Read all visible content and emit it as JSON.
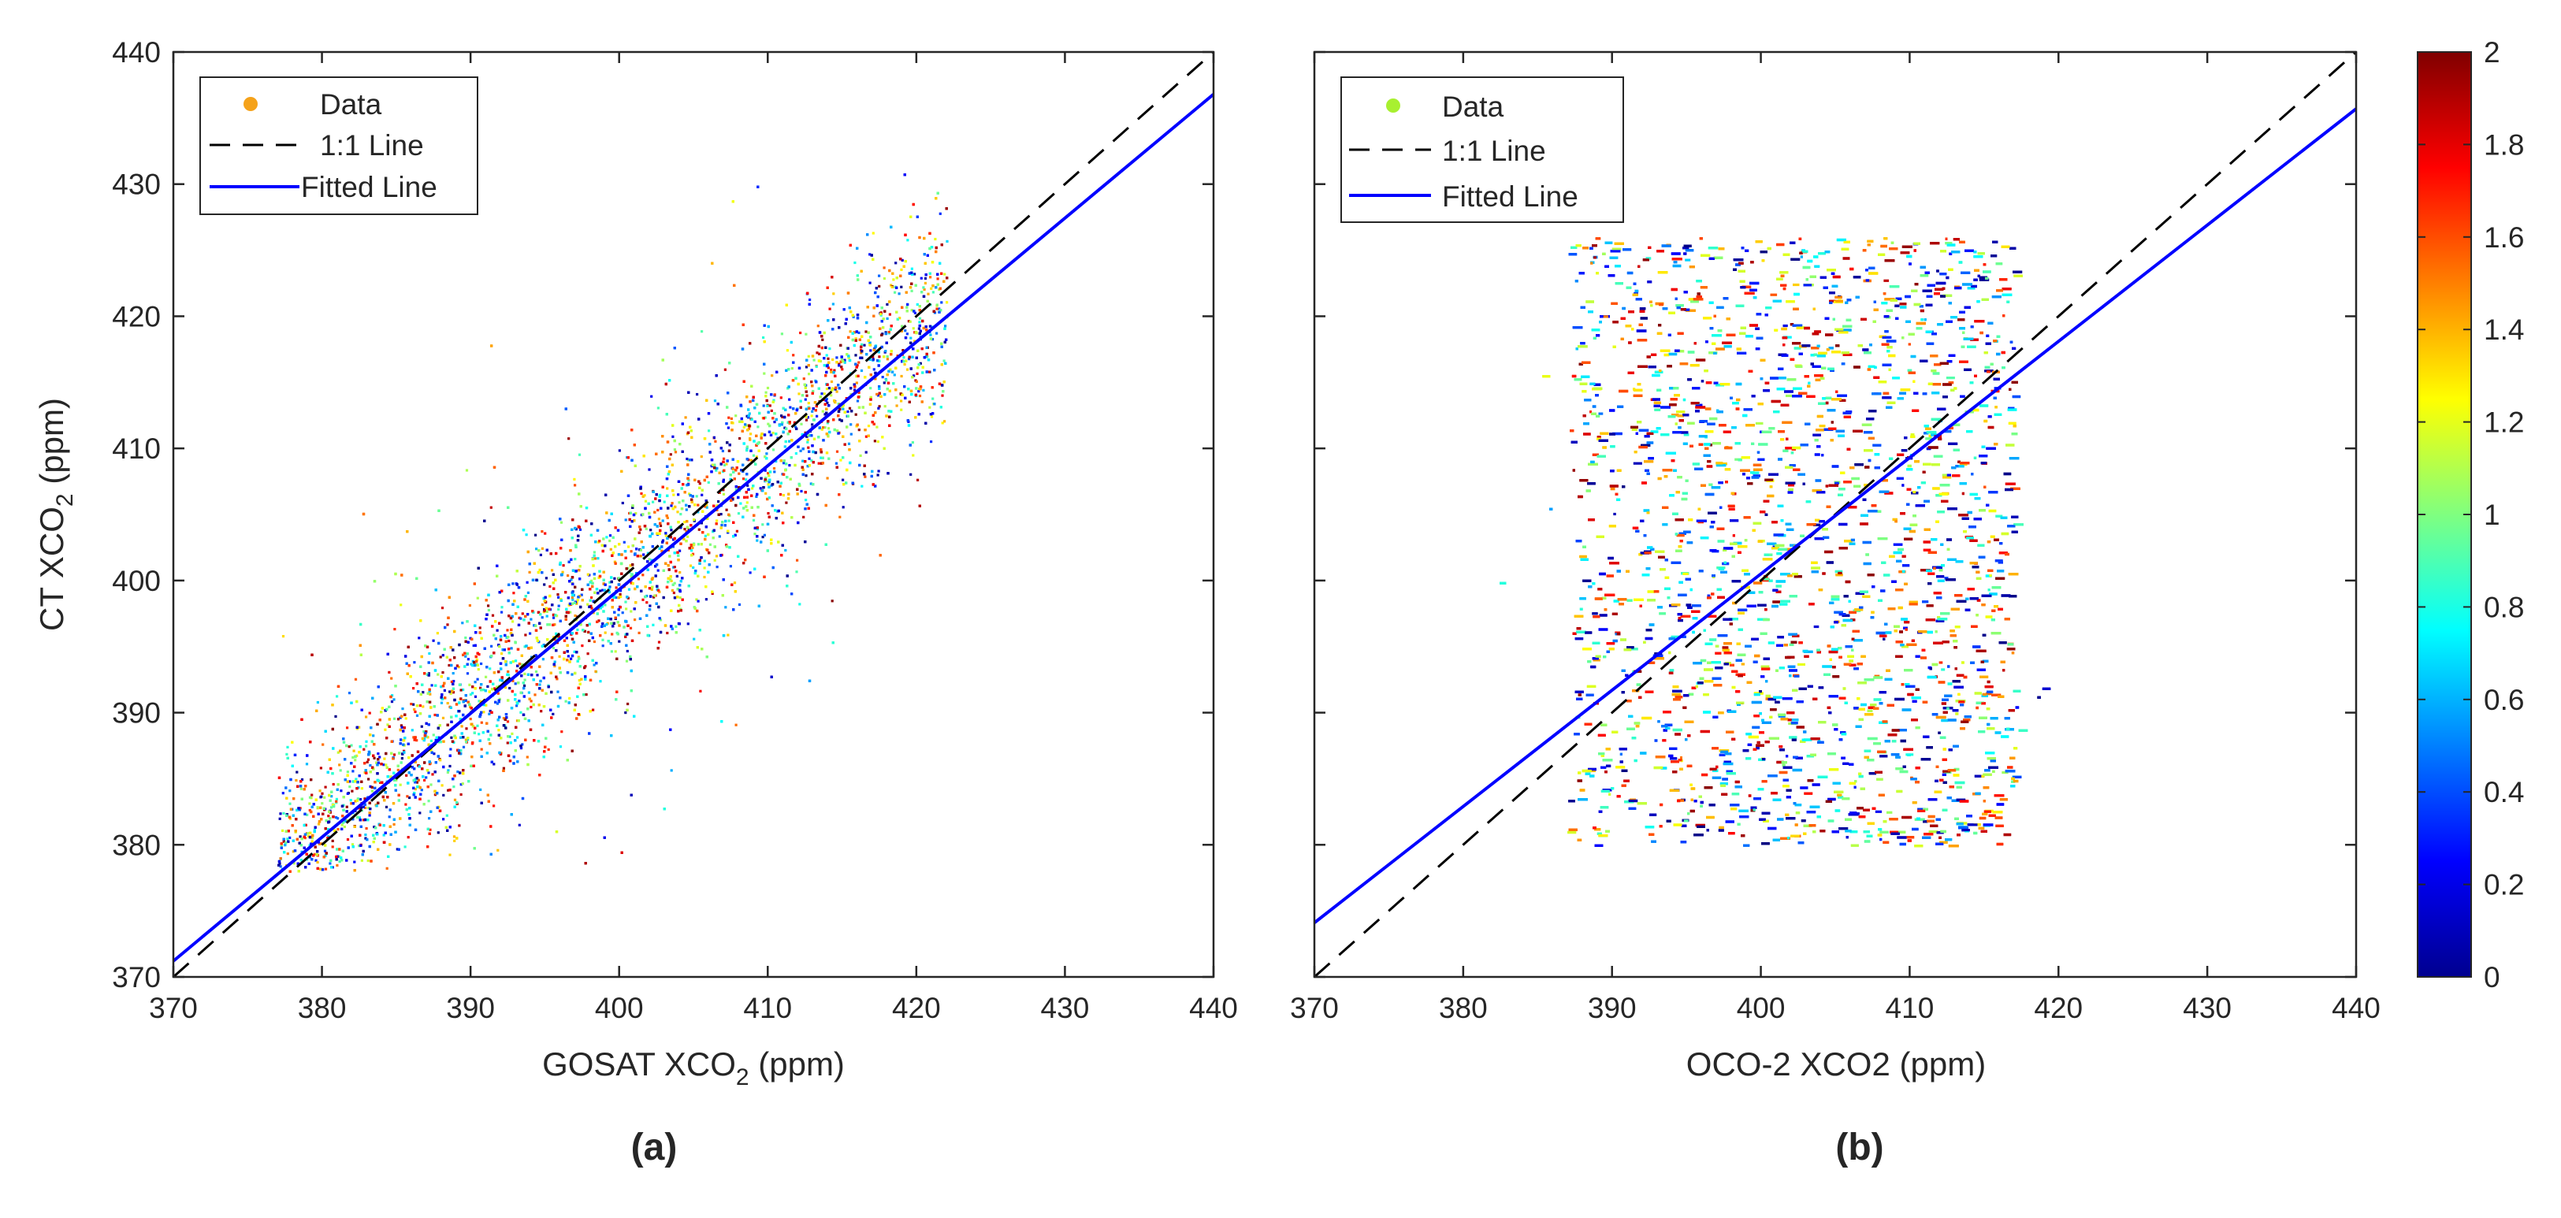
{
  "colorbar": {
    "min": 0,
    "max": 2,
    "ticks": [
      0,
      0.2,
      0.4,
      0.6,
      0.8,
      1,
      1.2,
      1.4,
      1.6,
      1.8,
      2
    ],
    "tick_labels": [
      "0",
      "0.2",
      "0.4",
      "0.6",
      "0.8",
      "1",
      "1.2",
      "1.4",
      "1.6",
      "1.8",
      "2"
    ],
    "colormap": "jet"
  },
  "colors": {
    "one_to_one_line": "#000000",
    "fitted_line": "#0000ff",
    "legend_marker_a": "#f5a21a",
    "legend_marker_b": "#a8f030"
  },
  "chart_data": [
    {
      "type": "scatter",
      "panel_label": "(a)",
      "xlabel": {
        "main": "GOSAT XCO",
        "sub": "2",
        "suffix": " (ppm)"
      },
      "ylabel": {
        "main": "CT XCO",
        "sub": "2",
        "suffix": " (ppm)"
      },
      "xlim": [
        370,
        440
      ],
      "ylim": [
        370,
        440
      ],
      "xticks": [
        370,
        380,
        390,
        400,
        410,
        420,
        430,
        440
      ],
      "yticks": [
        370,
        380,
        390,
        400,
        410,
        420,
        430,
        440
      ],
      "xtick_labels": [
        "370",
        "380",
        "390",
        "400",
        "410",
        "420",
        "430",
        "440"
      ],
      "ytick_labels": [
        "370",
        "380",
        "390",
        "400",
        "410",
        "420",
        "430",
        "440"
      ],
      "legend": {
        "placement": "top-left",
        "entries": [
          "Data",
          "1:1 Line",
          "Fitted Line"
        ]
      },
      "one_to_one_line": {
        "x": [
          370,
          440
        ],
        "y": [
          370,
          440
        ]
      },
      "fitted_line": {
        "x": [
          370,
          440
        ],
        "y": [
          371.2,
          436.8
        ]
      },
      "scatter": {
        "x_range": [
          377,
          422
        ],
        "y_range": [
          378,
          432
        ],
        "main_trend": {
          "slope": 0.94,
          "intercept": 24.0,
          "spread": 4.0
        },
        "color_range": [
          0,
          2
        ]
      }
    },
    {
      "type": "scatter",
      "panel_label": "(b)",
      "xlabel": {
        "main": "OCO-2 XCO2",
        "sub": "",
        "suffix": " (ppm)"
      },
      "ylabel": {
        "main": "",
        "sub": "",
        "suffix": ""
      },
      "xlim": [
        370,
        440
      ],
      "ylim": [
        370,
        440
      ],
      "xticks": [
        370,
        380,
        390,
        400,
        410,
        420,
        430,
        440
      ],
      "xtick_labels": [
        "370",
        "380",
        "390",
        "400",
        "410",
        "420",
        "430",
        "440"
      ],
      "yticks": [
        370,
        380,
        390,
        400,
        410,
        420,
        430,
        440
      ],
      "ytick_labels": [],
      "legend": {
        "placement": "top-left",
        "entries": [
          "Data",
          "1:1 Line",
          "Fitted Line"
        ]
      },
      "one_to_one_line": {
        "x": [
          370,
          440
        ],
        "y": [
          370,
          440
        ]
      },
      "fitted_line": {
        "x": [
          370,
          440
        ],
        "y": [
          374.1,
          435.7
        ]
      },
      "scatter": {
        "x_range": [
          386,
          420
        ],
        "y_range": [
          378,
          427
        ],
        "bulk_box": {
          "x": [
            387,
            417
          ],
          "y": [
            380,
            426
          ]
        },
        "color_range": [
          0,
          2
        ]
      }
    }
  ]
}
